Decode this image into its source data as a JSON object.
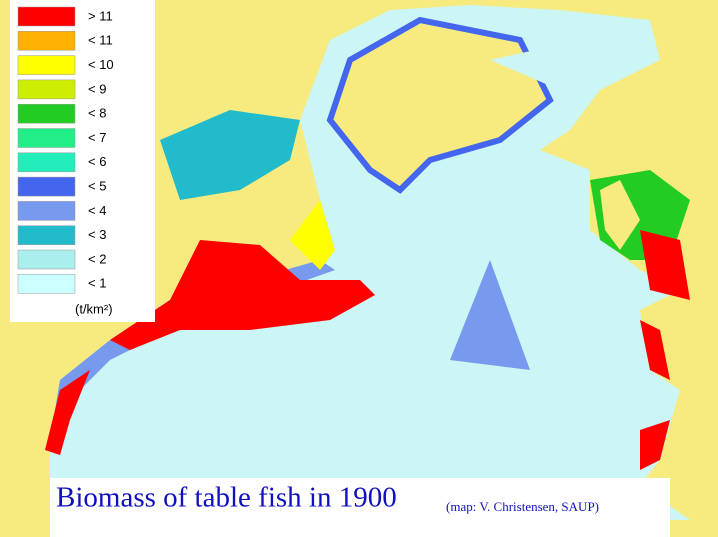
{
  "legend": {
    "items": [
      {
        "label": "> 11",
        "color": "#ff0000"
      },
      {
        "label": "< 11",
        "color": "#ffb000"
      },
      {
        "label": "< 10",
        "color": "#ffff00"
      },
      {
        "label": "< 9",
        "color": "#ccee00"
      },
      {
        "label": "< 8",
        "color": "#22cc22"
      },
      {
        "label": "< 7",
        "color": "#22ee88"
      },
      {
        "label": "< 6",
        "color": "#22eebb"
      },
      {
        "label": "< 5",
        "color": "#4466ee"
      },
      {
        "label": "< 4",
        "color": "#7799ee"
      },
      {
        "label": "< 3",
        "color": "#22bbcc"
      },
      {
        "label": "< 2",
        "color": "#aaeeee"
      },
      {
        "label": "< 1",
        "color": "#ccffff"
      }
    ],
    "unit": "(t/km²)"
  },
  "title": "Biomass of table fish in 1900",
  "credit": "(map: V. Christensen, SAUP)"
}
